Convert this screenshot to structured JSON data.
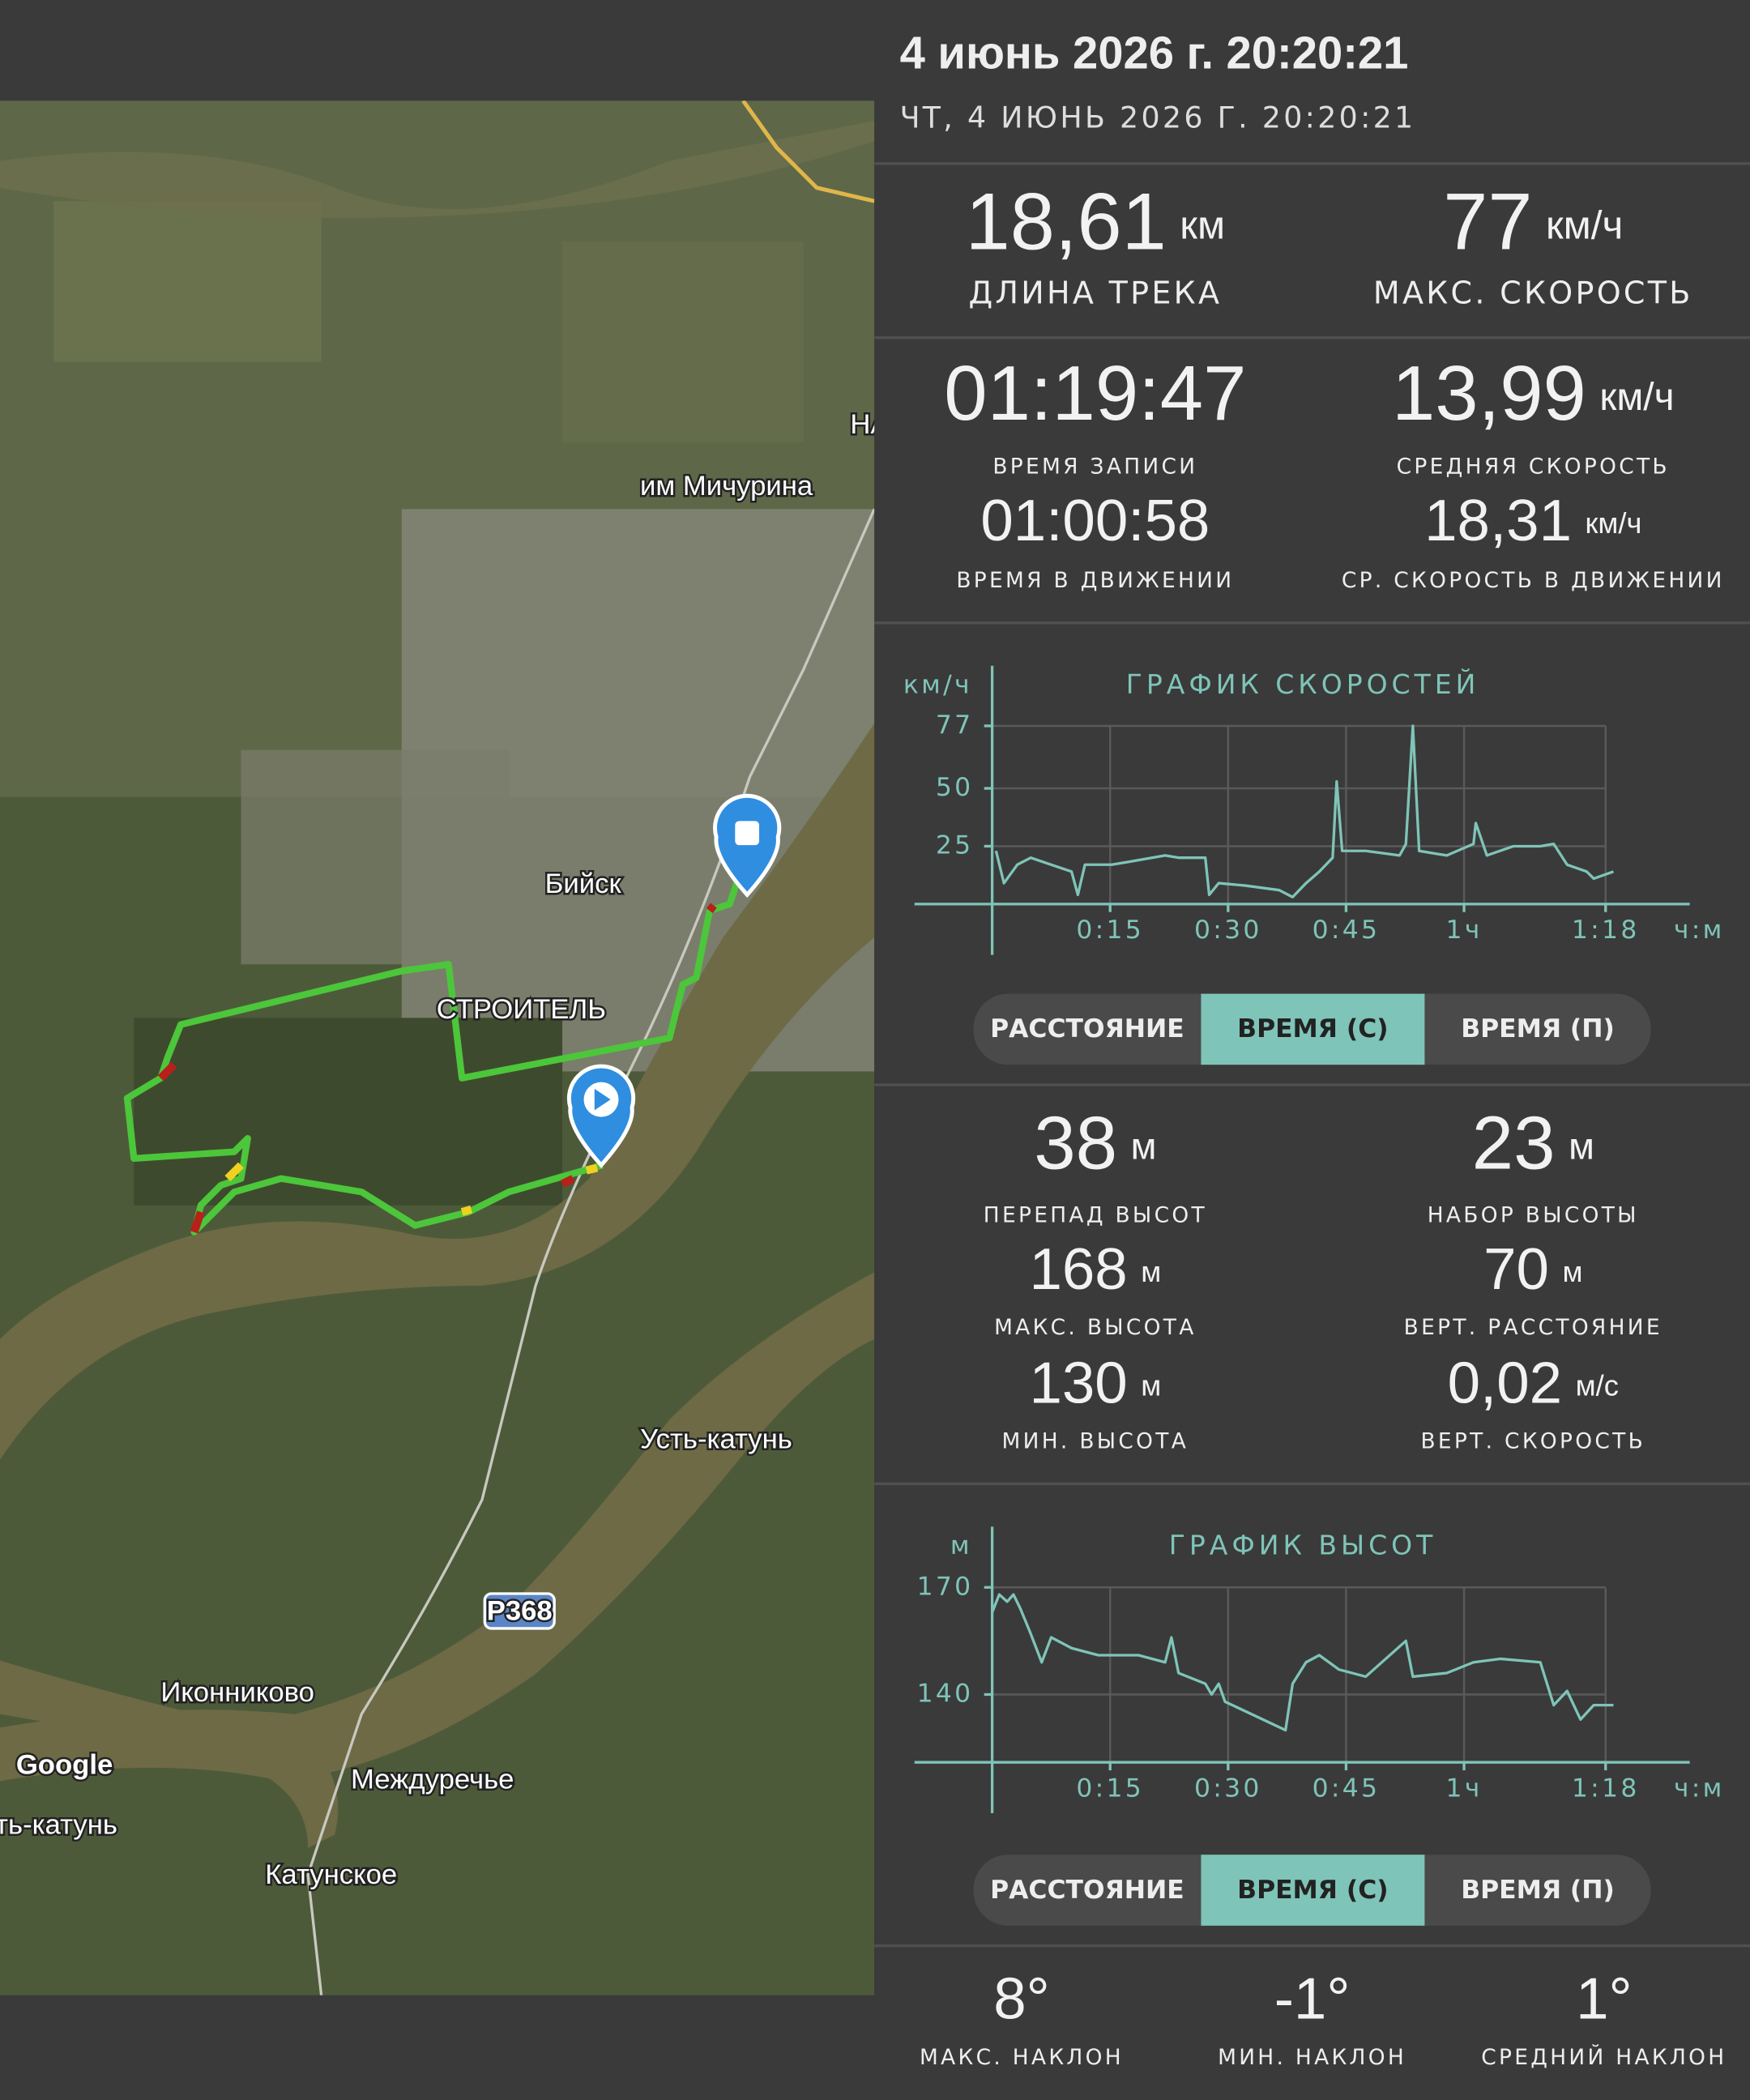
{
  "header": {
    "title": "4 июнь 2026 г. 20:20:21",
    "subtitle": "ЧТ, 4 ИЮНЬ 2026 Г. 20:20:21"
  },
  "map": {
    "labels": [
      "им Мичурина",
      "Бийск",
      "СТРОИТЕЛЬ",
      "Усть-катунь",
      "Р368",
      "Иконниково",
      "Междуречье",
      "Катунское",
      "Google",
      "Усть-катунь",
      "НА"
    ]
  },
  "track_stats": [
    {
      "value": "18,61",
      "unit": "км",
      "label": "ДЛИНА ТРЕКА"
    },
    {
      "value": "77",
      "unit": "км/ч",
      "label": "МАКС. СКОРОСТЬ"
    }
  ],
  "time_stats": [
    {
      "value": "01:19:47",
      "label": "ВРЕМЯ ЗАПИСИ"
    },
    {
      "value": "13,99",
      "unit": "км/ч",
      "label": "СРЕДНЯЯ СКОРОСТЬ"
    },
    {
      "value": "01:00:58",
      "label": "ВРЕМЯ В ДВИЖЕНИИ"
    },
    {
      "value": "18,31",
      "unit": "км/ч",
      "label": "СР. СКОРОСТЬ В ДВИЖЕНИИ"
    }
  ],
  "speed_chart": {
    "type": "line",
    "title": "ГРАФИК СКОРОСТЕЙ",
    "y_unit": "км/ч",
    "x_unit": "ч:м",
    "color": "#7fc4b8",
    "x": [
      0.5,
      1.5,
      3.2,
      4.9,
      7.5,
      10.1,
      10.9,
      11.8,
      15.2,
      18.6,
      22,
      23.7,
      27.1,
      27.6,
      28.8,
      32.2,
      36.5,
      38.2,
      39.9,
      41.6,
      43.3,
      43.8,
      44.5,
      47.5,
      51.8,
      52.6,
      53.5,
      54.3,
      57.8,
      61.2,
      61.5,
      62.9,
      66.3,
      69.7,
      71.4,
      73.1,
      75.6,
      76.5,
      79
    ],
    "values": [
      23,
      9,
      17,
      20,
      17,
      14,
      4,
      17,
      17,
      19,
      21,
      20,
      20,
      4,
      9,
      8,
      6,
      3,
      9,
      14,
      20,
      53,
      23,
      23,
      21,
      26,
      77,
      23,
      21,
      26,
      35,
      21,
      25,
      25,
      26,
      17,
      14,
      11,
      14
    ],
    "xlim": [
      0,
      88.7
    ],
    "ylim": [
      0,
      103
    ],
    "yticks": [
      25,
      50,
      77
    ],
    "xticks": [
      {
        "value": 15,
        "label": "0:15"
      },
      {
        "value": 30,
        "label": "0:30"
      },
      {
        "value": 45,
        "label": "0:45"
      },
      {
        "value": 60,
        "label": "1ч"
      },
      {
        "value": 78,
        "label": "1:18"
      }
    ]
  },
  "speed_tabs": {
    "items": [
      "РАССТОЯНИЕ",
      "ВРЕМЯ (С)",
      "ВРЕМЯ (П)"
    ],
    "active": 1
  },
  "elevation_stats": [
    {
      "value": "38",
      "unit": "м",
      "label": "ПЕРЕПАД ВЫСОТ"
    },
    {
      "value": "23",
      "unit": "м",
      "label": "НАБОР ВЫСОТЫ"
    },
    {
      "value": "168",
      "unit": "м",
      "label": "МАКС. ВЫСОТА"
    },
    {
      "value": "70",
      "unit": "м",
      "label": "ВЕРТ. РАССТОЯНИЕ"
    },
    {
      "value": "130",
      "unit": "м",
      "label": "МИН. ВЫСОТА"
    },
    {
      "value": "0,02",
      "unit": "м/с",
      "label": "ВЕРТ. СКОРОСТЬ"
    }
  ],
  "elevation_chart": {
    "type": "line",
    "title": "ГРАФИК ВЫСОТ",
    "y_unit": "м",
    "x_unit": "ч:м",
    "color": "#7fc4b8",
    "x": [
      0,
      0.9,
      1.9,
      2.7,
      3.6,
      4.9,
      6.3,
      7.5,
      10.1,
      13.5,
      18.6,
      22,
      22.8,
      23.7,
      27.1,
      27.9,
      28.8,
      29.6,
      37.3,
      38.2,
      39.9,
      41.6,
      44.1,
      47.5,
      52.6,
      53.5,
      57.8,
      61.2,
      64.6,
      69.7,
      71.4,
      73.1,
      74.8,
      76.5,
      79
    ],
    "values": [
      163,
      168,
      166,
      168,
      164,
      157,
      149,
      156,
      153,
      151,
      151,
      149,
      156,
      146,
      143,
      140,
      143,
      138,
      130,
      143,
      149,
      151,
      147,
      145,
      155,
      145,
      146,
      149,
      150,
      149,
      137,
      141,
      133,
      137,
      137
    ],
    "xlim": [
      0,
      88.7
    ],
    "ylim": [
      121,
      187
    ],
    "yticks": [
      140,
      170
    ],
    "xticks": [
      {
        "value": 15,
        "label": "0:15"
      },
      {
        "value": 30,
        "label": "0:30"
      },
      {
        "value": 45,
        "label": "0:45"
      },
      {
        "value": 60,
        "label": "1ч"
      },
      {
        "value": 78,
        "label": "1:18"
      }
    ]
  },
  "elevation_tabs": {
    "items": [
      "РАССТОЯНИЕ",
      "ВРЕМЯ (С)",
      "ВРЕМЯ (П)"
    ],
    "active": 1
  },
  "slope_stats": [
    {
      "value": "8°",
      "label": "МАКС. НАКЛОН"
    },
    {
      "value": "-1°",
      "label": "МИН. НАКЛОН"
    },
    {
      "value": "1°",
      "label": "СРЕДНИЙ НАКЛОН"
    }
  ]
}
